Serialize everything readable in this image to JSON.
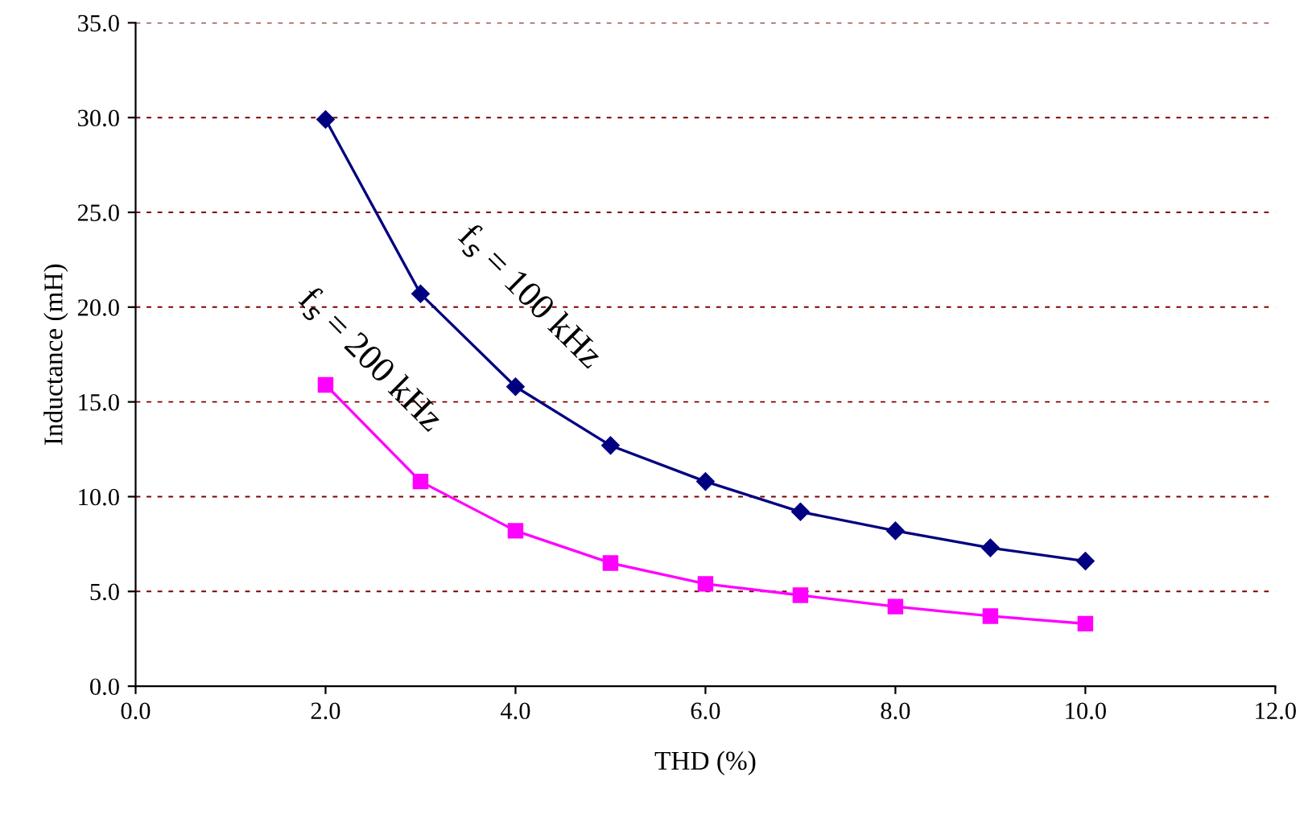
{
  "chart_data": {
    "type": "line",
    "xlabel": "THD (%)",
    "ylabel": "Inductance (mH)",
    "x": [
      2,
      3,
      4,
      5,
      6,
      7,
      8,
      9,
      10
    ],
    "series": [
      {
        "color": "#000080",
        "marker": "diamond",
        "values": [
          29.9,
          20.7,
          15.8,
          12.7,
          10.8,
          9.2,
          8.2,
          7.3,
          6.6
        ]
      },
      {
        "color": "#ff00ff",
        "marker": "square",
        "values": [
          15.9,
          10.8,
          8.2,
          6.5,
          5.4,
          4.8,
          4.2,
          3.7,
          3.3
        ]
      }
    ],
    "xlim": [
      0,
      12
    ],
    "xticks": [
      {
        "value": 0,
        "label": "0.0"
      },
      {
        "value": 2,
        "label": "2.0"
      },
      {
        "value": 4,
        "label": "4.0"
      },
      {
        "value": 6,
        "label": "6.0"
      },
      {
        "value": 8,
        "label": "8.0"
      },
      {
        "value": 10,
        "label": "10.0"
      },
      {
        "value": 12,
        "label": "12.0"
      }
    ],
    "ylim": [
      0,
      35
    ],
    "yticks": [
      {
        "value": 0,
        "label": "0.0"
      },
      {
        "value": 5,
        "label": "5.0"
      },
      {
        "value": 10,
        "label": "10.0"
      },
      {
        "value": 15,
        "label": "15.0"
      },
      {
        "value": 20,
        "label": "20.0"
      },
      {
        "value": 25,
        "label": "25.0"
      },
      {
        "value": 30,
        "label": "30.0"
      },
      {
        "value": 35,
        "label": "35.0"
      }
    ],
    "grid": "y",
    "annotations": [
      "f$_{s}$ = 100 kHz",
      "f$_{s}$ = 200 kHz"
    ]
  }
}
